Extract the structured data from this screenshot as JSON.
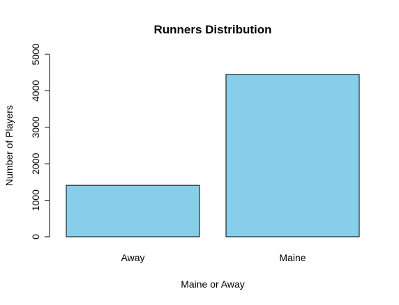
{
  "chart_data": {
    "type": "bar",
    "title": "Runners Distribution",
    "xlabel": "Maine or Away",
    "ylabel": "Number of Players",
    "categories": [
      "Away",
      "Maine"
    ],
    "values": [
      1410,
      4450
    ],
    "ylim": [
      0,
      5000
    ],
    "yticks": [
      0,
      1000,
      2000,
      3000,
      4000,
      5000
    ],
    "grid": false,
    "legend": "none",
    "colors": {
      "bar_fill": "#87ceeb",
      "bar_stroke": "#000000"
    }
  }
}
